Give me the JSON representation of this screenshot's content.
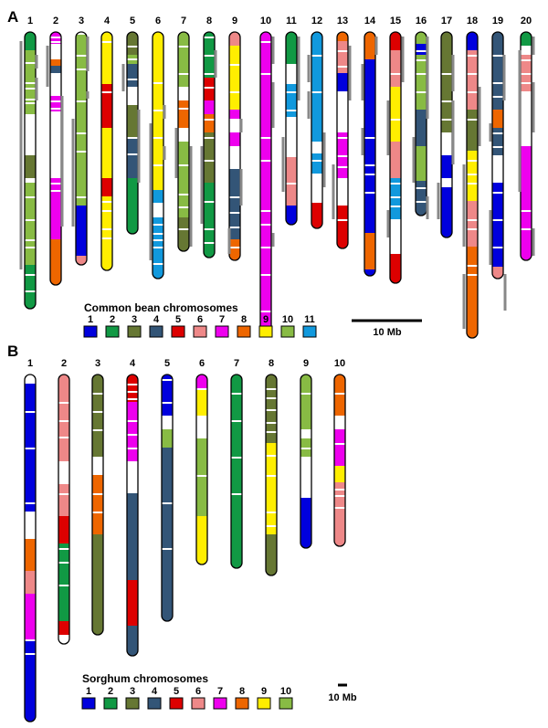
{
  "panel_a": {
    "letter": "A",
    "chromosome_labels": [
      "1",
      "2",
      "3",
      "4",
      "5",
      "6",
      "7",
      "8",
      "9",
      "10",
      "11",
      "12",
      "13",
      "14",
      "15",
      "16",
      "17",
      "18",
      "19",
      "20"
    ],
    "legend_title": "Common bean chromosomes",
    "legend_labels": [
      "1",
      "2",
      "3",
      "4",
      "5",
      "6",
      "7",
      "8",
      "9",
      "10",
      "11"
    ],
    "legend_colors": [
      "#0000dd",
      "#119944",
      "#667733",
      "#335577",
      "#dd0000",
      "#ee8888",
      "#ee00ee",
      "#ee6600",
      "#ffee00",
      "#88bb44",
      "#1199dd"
    ],
    "scale_label": "10 Mb"
  },
  "panel_b": {
    "letter": "B",
    "chromosome_labels": [
      "1",
      "2",
      "3",
      "4",
      "5",
      "6",
      "7",
      "8",
      "9",
      "10"
    ],
    "legend_title": "Sorghum chromosomes",
    "legend_labels": [
      "1",
      "2",
      "3",
      "4",
      "5",
      "6",
      "7",
      "8",
      "9",
      "10"
    ],
    "legend_colors": [
      "#0000dd",
      "#119944",
      "#667733",
      "#335577",
      "#dd0000",
      "#ee8888",
      "#ee00ee",
      "#ee6600",
      "#ffee00",
      "#88bb44"
    ],
    "scale_label": "10 Mb"
  }
}
